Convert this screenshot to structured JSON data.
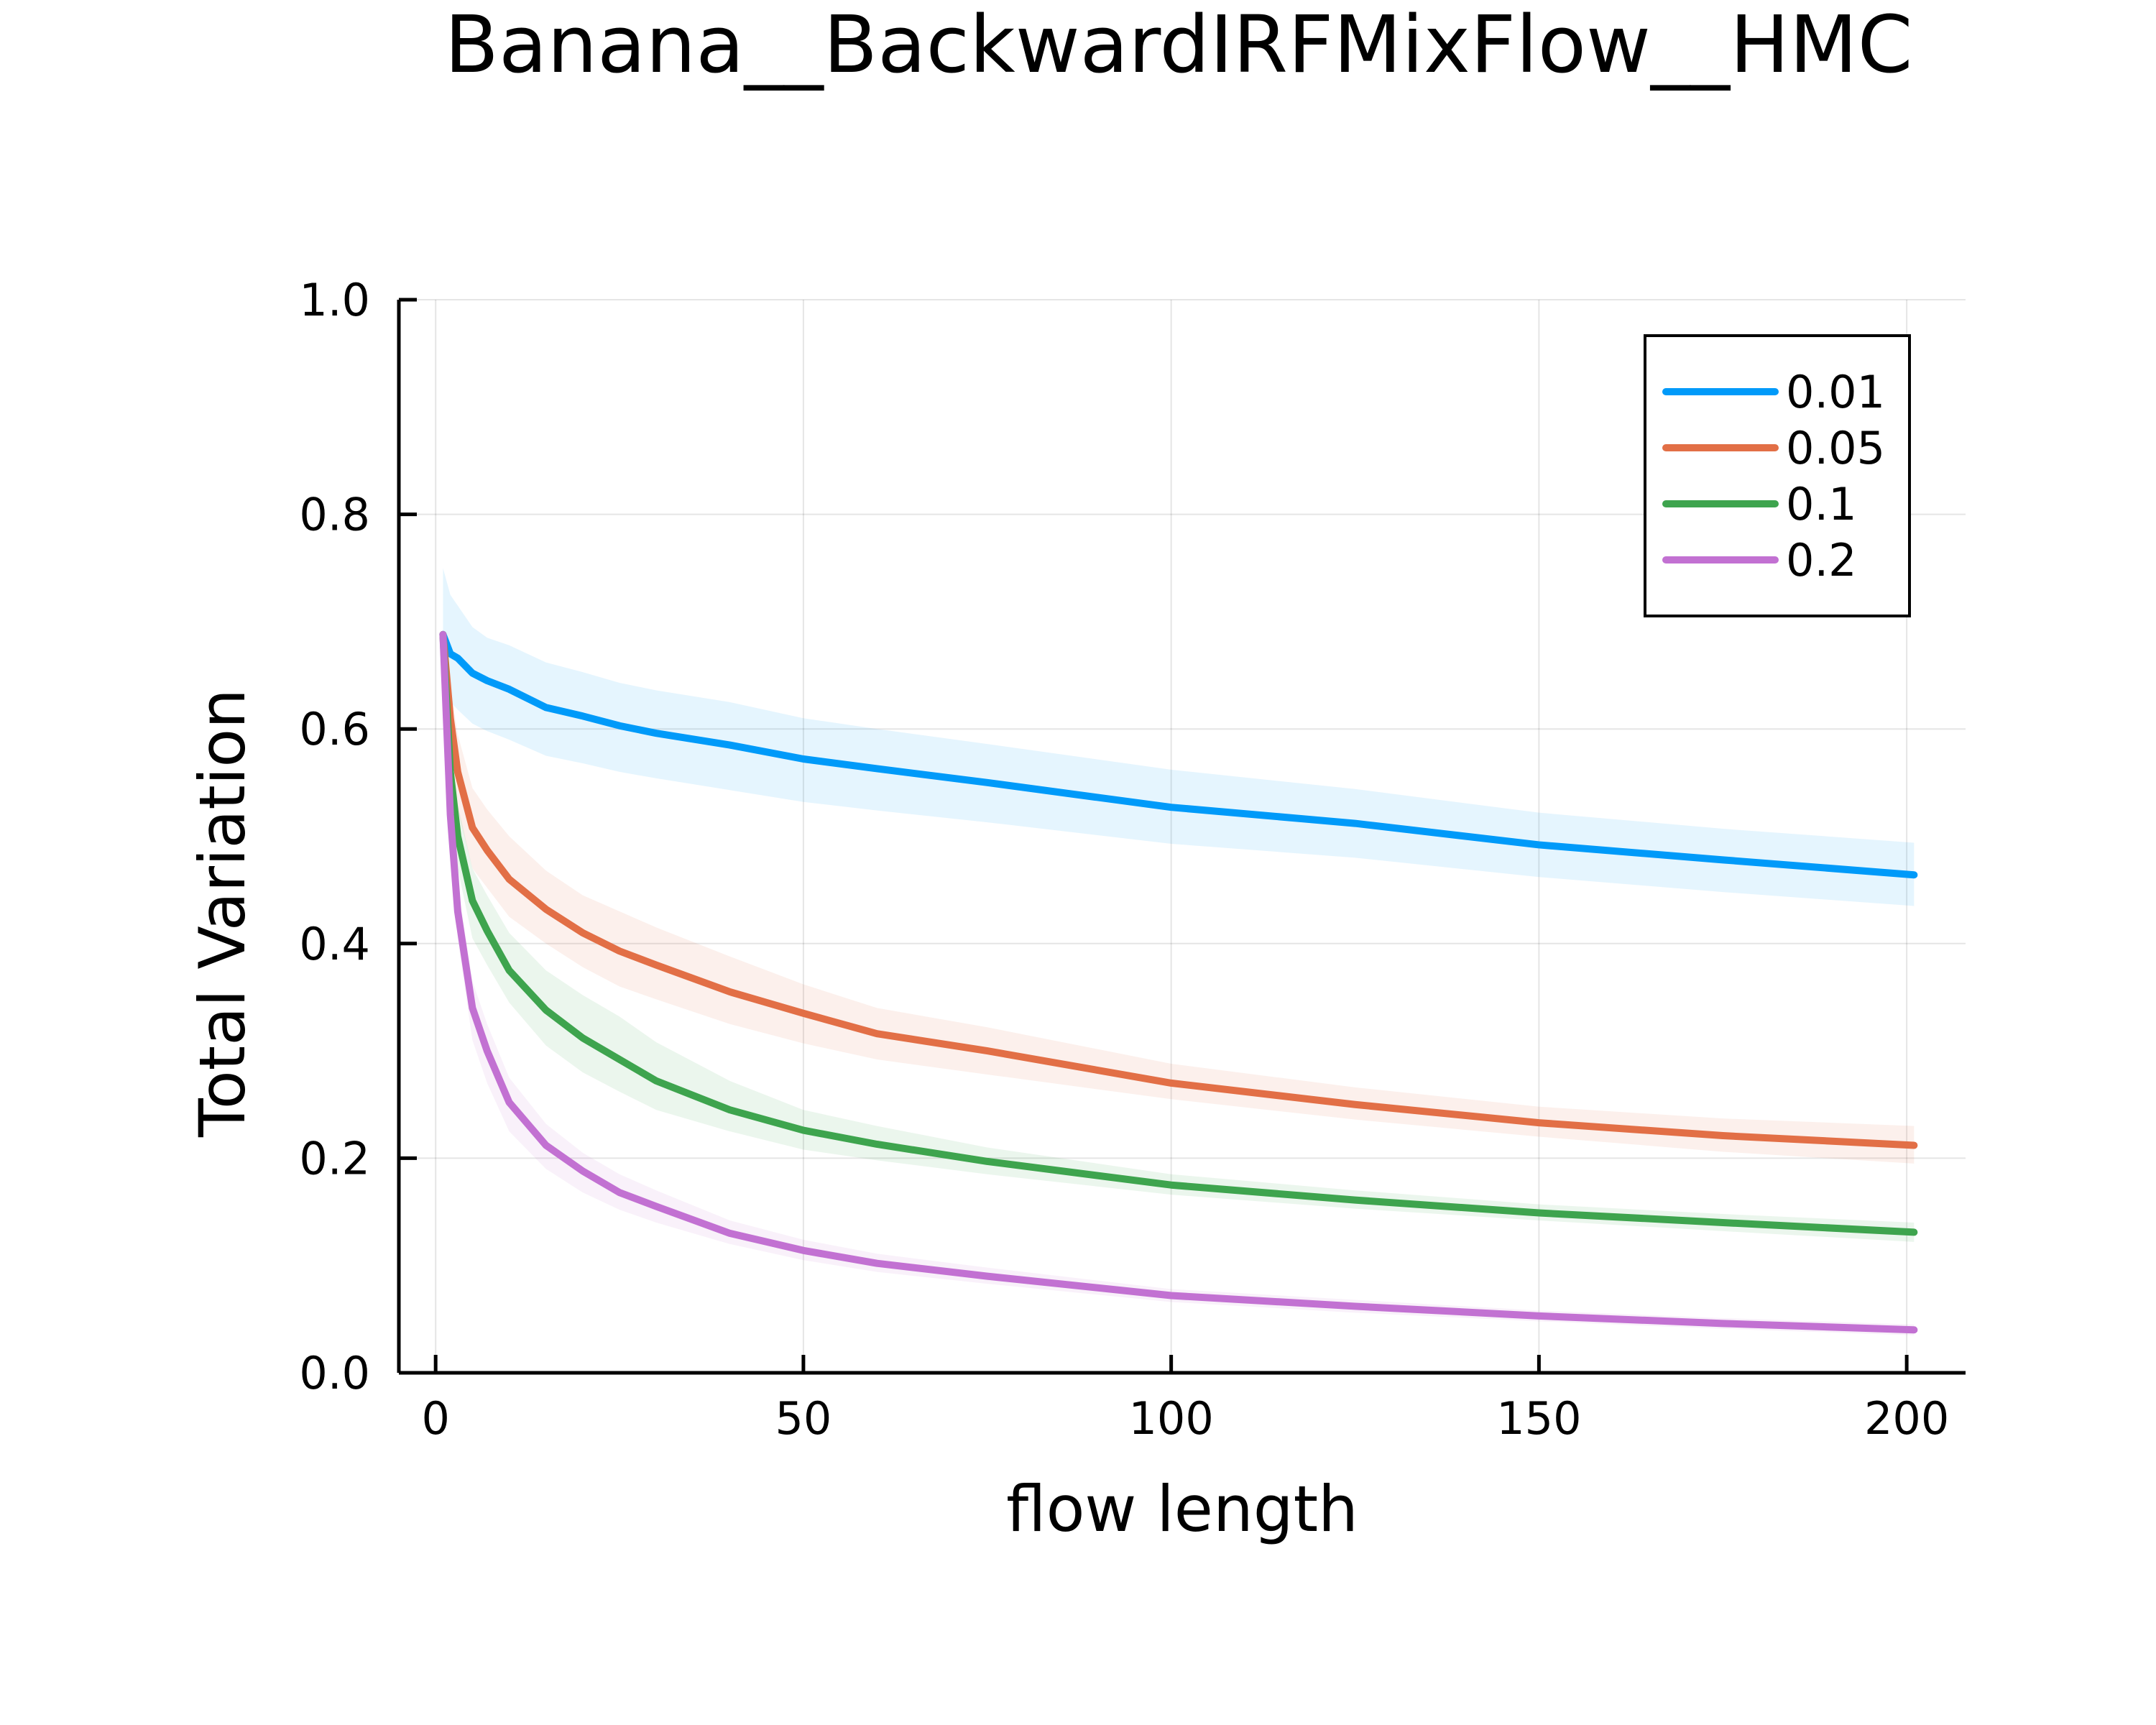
{
  "chart_data": {
    "type": "line",
    "title": "Banana__BackwardIRFMixFlow__HMC",
    "xlabel": "flow length",
    "ylabel": "Total Variation",
    "xlim": [
      -5,
      208
    ],
    "ylim": [
      0.0,
      1.0
    ],
    "xticks": [
      0,
      50,
      100,
      150,
      200
    ],
    "xtick_labels": [
      "0",
      "50",
      "100",
      "150",
      "200"
    ],
    "yticks": [
      0.0,
      0.2,
      0.4,
      0.6,
      0.8,
      1.0
    ],
    "ytick_labels": [
      "0.0",
      "0.2",
      "0.4",
      "0.6",
      "0.8",
      "1.0"
    ],
    "grid": true,
    "legend_position": "top-right",
    "band": "shaded uncertainty band around each series",
    "x": [
      1,
      2,
      3,
      5,
      7,
      10,
      15,
      20,
      25,
      30,
      40,
      50,
      60,
      75,
      100,
      125,
      150,
      175,
      201
    ],
    "series": [
      {
        "name": "0.01",
        "color": "#009af9",
        "values": [
          0.688,
          0.67,
          0.666,
          0.652,
          0.645,
          0.637,
          0.62,
          0.612,
          0.603,
          0.596,
          0.585,
          0.572,
          0.563,
          0.55,
          0.527,
          0.512,
          0.492,
          0.478,
          0.464
        ],
        "lower": [
          0.64,
          0.625,
          0.618,
          0.605,
          0.598,
          0.59,
          0.575,
          0.568,
          0.56,
          0.554,
          0.543,
          0.532,
          0.524,
          0.513,
          0.493,
          0.48,
          0.462,
          0.448,
          0.435
        ],
        "upper": [
          0.75,
          0.725,
          0.715,
          0.695,
          0.685,
          0.678,
          0.662,
          0.653,
          0.643,
          0.636,
          0.625,
          0.61,
          0.6,
          0.586,
          0.562,
          0.544,
          0.522,
          0.507,
          0.494
        ]
      },
      {
        "name": "0.05",
        "color": "#e26f46",
        "values": [
          0.688,
          0.61,
          0.56,
          0.508,
          0.487,
          0.46,
          0.432,
          0.41,
          0.393,
          0.38,
          0.355,
          0.335,
          0.316,
          0.3,
          0.27,
          0.25,
          0.233,
          0.221,
          0.212
        ],
        "lower": [
          0.688,
          0.58,
          0.525,
          0.47,
          0.452,
          0.425,
          0.4,
          0.378,
          0.36,
          0.348,
          0.325,
          0.307,
          0.292,
          0.278,
          0.255,
          0.236,
          0.22,
          0.206,
          0.195
        ],
        "upper": [
          0.688,
          0.64,
          0.595,
          0.545,
          0.525,
          0.5,
          0.468,
          0.445,
          0.43,
          0.415,
          0.388,
          0.362,
          0.34,
          0.322,
          0.288,
          0.266,
          0.248,
          0.237,
          0.23
        ]
      },
      {
        "name": "0.1",
        "color": "#3ea44e",
        "values": [
          0.688,
          0.56,
          0.5,
          0.44,
          0.412,
          0.375,
          0.338,
          0.312,
          0.292,
          0.272,
          0.245,
          0.226,
          0.213,
          0.197,
          0.175,
          0.161,
          0.149,
          0.14,
          0.131
        ],
        "lower": [
          0.688,
          0.535,
          0.47,
          0.405,
          0.38,
          0.345,
          0.305,
          0.28,
          0.262,
          0.245,
          0.225,
          0.208,
          0.198,
          0.185,
          0.166,
          0.153,
          0.142,
          0.132,
          0.122
        ],
        "upper": [
          0.688,
          0.585,
          0.53,
          0.47,
          0.445,
          0.41,
          0.375,
          0.352,
          0.332,
          0.308,
          0.272,
          0.245,
          0.23,
          0.21,
          0.185,
          0.17,
          0.157,
          0.148,
          0.14
        ]
      },
      {
        "name": "0.2",
        "color": "#c271d2",
        "values": [
          0.688,
          0.52,
          0.43,
          0.34,
          0.3,
          0.252,
          0.212,
          0.188,
          0.168,
          0.155,
          0.13,
          0.114,
          0.102,
          0.09,
          0.072,
          0.062,
          0.053,
          0.046,
          0.04
        ],
        "lower": [
          0.688,
          0.5,
          0.405,
          0.31,
          0.27,
          0.225,
          0.19,
          0.168,
          0.152,
          0.14,
          0.12,
          0.105,
          0.094,
          0.083,
          0.066,
          0.056,
          0.048,
          0.041,
          0.035
        ],
        "upper": [
          0.688,
          0.545,
          0.455,
          0.365,
          0.325,
          0.275,
          0.232,
          0.205,
          0.185,
          0.17,
          0.142,
          0.124,
          0.111,
          0.098,
          0.078,
          0.068,
          0.058,
          0.051,
          0.045
        ]
      }
    ]
  }
}
